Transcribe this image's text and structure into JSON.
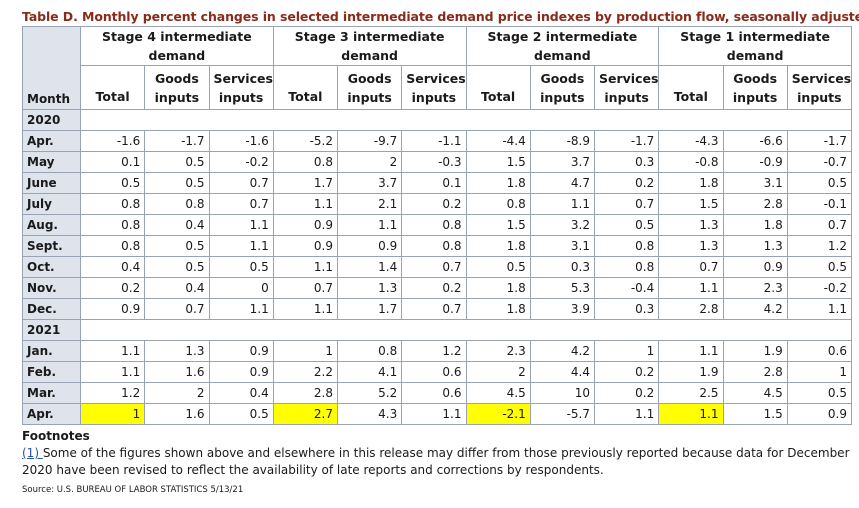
{
  "title": "Table D. Monthly percent changes in selected intermediate demand price indexes by production flow, seasonally adjusted",
  "header": {
    "month_label": "Month",
    "stages": [
      "Stage 4 intermediate demand",
      "Stage 3 intermediate demand",
      "Stage 2 intermediate demand",
      "Stage 1 intermediate demand"
    ],
    "sub_columns": [
      "Total",
      "Goods inputs",
      "Services inputs"
    ]
  },
  "rows": [
    {
      "type": "year",
      "label": "2020"
    },
    {
      "type": "data",
      "month": "Apr.",
      "values": [
        "-1.6",
        "-1.7",
        "-1.6",
        "-5.2",
        "-9.7",
        "-1.1",
        "-4.4",
        "-8.9",
        "-1.7",
        "-4.3",
        "-6.6",
        "-1.7"
      ]
    },
    {
      "type": "data",
      "month": "May",
      "values": [
        "0.1",
        "0.5",
        "-0.2",
        "0.8",
        "2",
        "-0.3",
        "1.5",
        "3.7",
        "0.3",
        "-0.8",
        "-0.9",
        "-0.7"
      ]
    },
    {
      "type": "data",
      "month": "June",
      "values": [
        "0.5",
        "0.5",
        "0.7",
        "1.7",
        "3.7",
        "0.1",
        "1.8",
        "4.7",
        "0.2",
        "1.8",
        "3.1",
        "0.5"
      ]
    },
    {
      "type": "data",
      "month": "July",
      "values": [
        "0.8",
        "0.8",
        "0.7",
        "1.1",
        "2.1",
        "0.2",
        "0.8",
        "1.1",
        "0.7",
        "1.5",
        "2.8",
        "-0.1"
      ]
    },
    {
      "type": "data",
      "month": "Aug.",
      "values": [
        "0.8",
        "0.4",
        "1.1",
        "0.9",
        "1.1",
        "0.8",
        "1.5",
        "3.2",
        "0.5",
        "1.3",
        "1.8",
        "0.7"
      ]
    },
    {
      "type": "data",
      "month": "Sept.",
      "values": [
        "0.8",
        "0.5",
        "1.1",
        "0.9",
        "0.9",
        "0.8",
        "1.8",
        "3.1",
        "0.8",
        "1.3",
        "1.3",
        "1.2"
      ]
    },
    {
      "type": "data",
      "month": "Oct.",
      "values": [
        "0.4",
        "0.5",
        "0.5",
        "1.1",
        "1.4",
        "0.7",
        "0.5",
        "0.3",
        "0.8",
        "0.7",
        "0.9",
        "0.5"
      ]
    },
    {
      "type": "data",
      "month": "Nov.",
      "values": [
        "0.2",
        "0.4",
        "0",
        "0.7",
        "1.3",
        "0.2",
        "1.8",
        "5.3",
        "-0.4",
        "1.1",
        "2.3",
        "-0.2"
      ]
    },
    {
      "type": "data",
      "month": "Dec.",
      "values": [
        "0.9",
        "0.7",
        "1.1",
        "1.1",
        "1.7",
        "0.7",
        "1.8",
        "3.9",
        "0.3",
        "2.8",
        "4.2",
        "1.1"
      ]
    },
    {
      "type": "year",
      "label": "2021"
    },
    {
      "type": "data",
      "month": "Jan.",
      "values": [
        "1.1",
        "1.3",
        "0.9",
        "1",
        "0.8",
        "1.2",
        "2.3",
        "4.2",
        "1",
        "1.1",
        "1.9",
        "0.6"
      ]
    },
    {
      "type": "data",
      "month": "Feb.",
      "values": [
        "1.1",
        "1.6",
        "0.9",
        "2.2",
        "4.1",
        "0.6",
        "2",
        "4.4",
        "0.2",
        "1.9",
        "2.8",
        "1"
      ]
    },
    {
      "type": "data",
      "month": "Mar.",
      "values": [
        "1.2",
        "2",
        "0.4",
        "2.8",
        "5.2",
        "0.6",
        "4.5",
        "10",
        "0.2",
        "2.5",
        "4.5",
        "0.5"
      ]
    },
    {
      "type": "data",
      "month": "Apr.",
      "values": [
        "1",
        "1.6",
        "0.5",
        "2.7",
        "4.3",
        "1.1",
        "-2.1",
        "-5.7",
        "1.1",
        "1.1",
        "1.5",
        "0.9"
      ],
      "highlight": [
        0,
        3,
        6,
        9
      ]
    }
  ],
  "highlight_color": "#ffff00",
  "footnotes": {
    "heading": "Footnotes",
    "link_text": "(1) ",
    "text": "Some of the figures shown above and elsewhere in this release may differ from those previously reported because data for December 2020 have been revised to reflect the availability of late reports and corrections by respondents."
  },
  "source": "Source: U.S. BUREAU OF LABOR STATISTICS 5/13/21"
}
